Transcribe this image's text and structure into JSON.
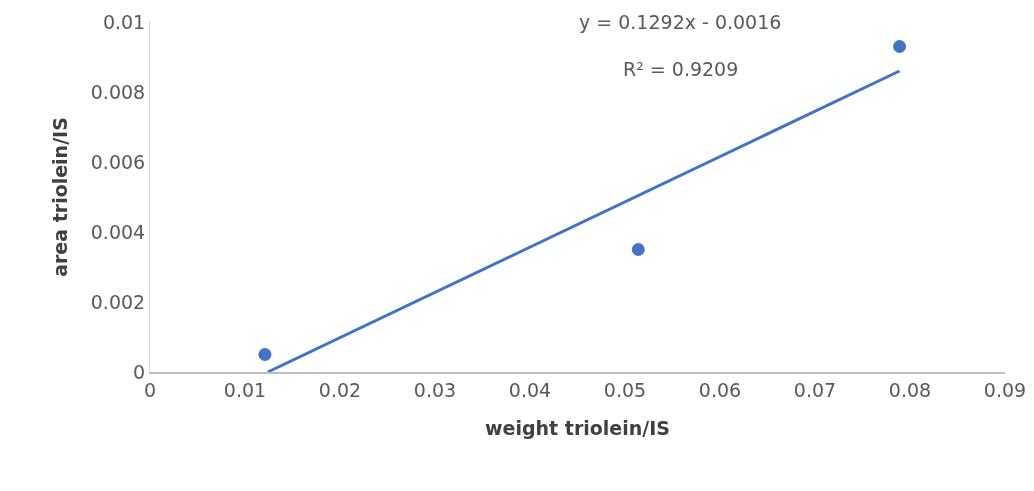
{
  "chart_data": {
    "type": "scatter",
    "xlabel": "weight triolein/IS",
    "ylabel": "area triolein/IS",
    "x": [
      0.0121,
      0.0514,
      0.0789
    ],
    "series": [
      {
        "color": "#4472c4",
        "marker": "circle",
        "values": [
          0.0005,
          0.0035,
          0.0093
        ]
      },
      {
        "type": "line",
        "color": "#4472c4",
        "marker": "none",
        "x": [
          0.0124,
          0.0789
        ],
        "values": [
          0,
          0.0086
        ]
      }
    ],
    "xlim": [
      0,
      0.09
    ],
    "xticks": [
      0,
      0.01,
      0.02,
      0.03,
      0.04,
      0.05,
      0.06,
      0.07,
      0.08,
      0.09
    ],
    "ylim": [
      0,
      0.01
    ],
    "yticks": [
      0,
      0.002,
      0.004,
      0.006,
      0.008,
      0.01
    ],
    "grid": false,
    "annotations": [
      "y = 0.1292x - 0.0016",
      "R² = 0.9209"
    ]
  }
}
